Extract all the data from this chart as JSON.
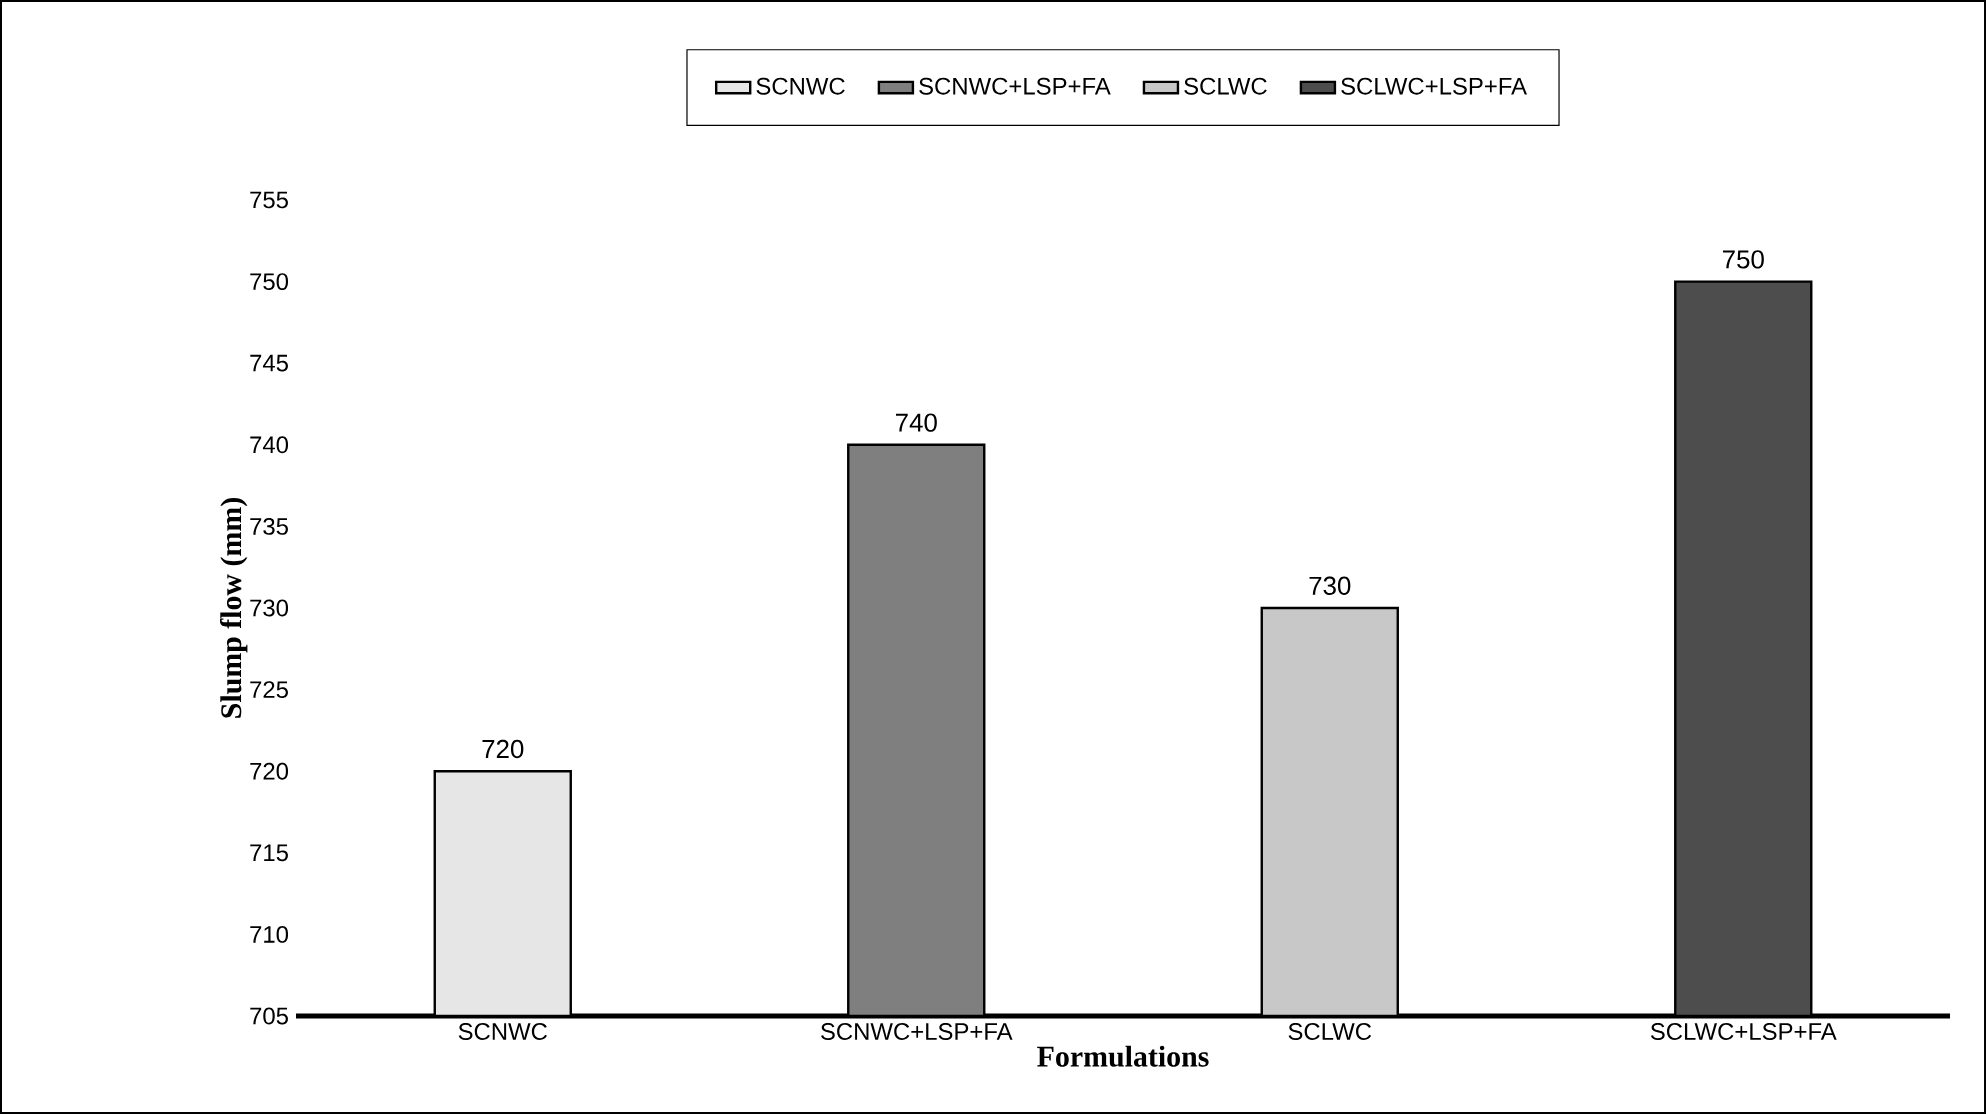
{
  "chart_data": {
    "type": "bar",
    "xlabel": "Formulations",
    "ylabel": "Slump flow (mm)",
    "categories": [
      "SCNWC",
      "SCNWC+LSP+FA",
      "SCLWC",
      "SCLWC+LSP+FA"
    ],
    "series": [
      {
        "name": "SCNWC",
        "color": "#e6e6e6",
        "values": [
          720,
          null,
          null,
          null
        ]
      },
      {
        "name": "SCNWC+LSP+FA",
        "color": "#7f7f7f",
        "values": [
          null,
          740,
          null,
          null
        ]
      },
      {
        "name": "SCLWC",
        "color": "#c8c8c8",
        "values": [
          null,
          null,
          730,
          null
        ]
      },
      {
        "name": "SCLWC+LSP+FA",
        "color": "#4d4d4d",
        "values": [
          null,
          null,
          null,
          750
        ]
      }
    ],
    "ylim": [
      705,
      755
    ],
    "yticks": [
      705,
      710,
      715,
      720,
      725,
      730,
      735,
      740,
      745,
      750,
      755
    ],
    "data_labels": true,
    "legend": "top",
    "grid": false
  }
}
